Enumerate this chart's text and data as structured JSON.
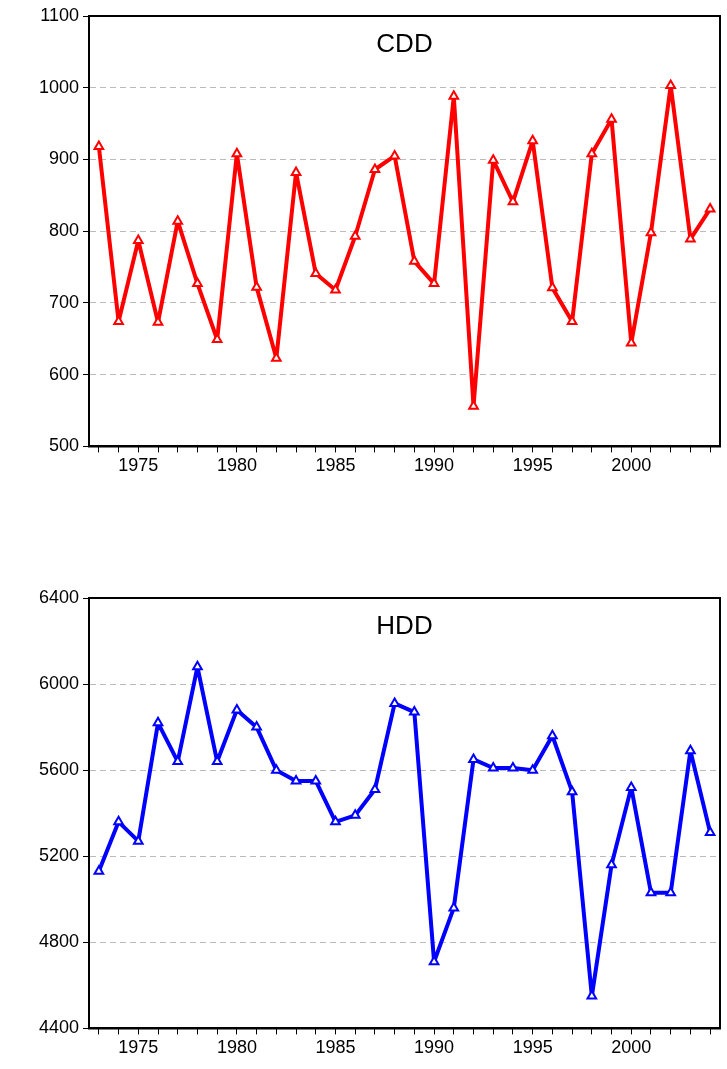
{
  "chart_data": [
    {
      "type": "line",
      "title": "CDD",
      "x": [
        1973,
        1974,
        1975,
        1976,
        1977,
        1978,
        1979,
        1980,
        1981,
        1982,
        1983,
        1984,
        1985,
        1986,
        1987,
        1988,
        1989,
        1990,
        1991,
        1992,
        1993,
        1994,
        1995,
        1996,
        1997,
        1998,
        1999,
        2000,
        2001,
        2002,
        2003,
        2004
      ],
      "series": [
        {
          "color": "#ff0000",
          "values": [
            918,
            674,
            787,
            673,
            814,
            727,
            649,
            908,
            722,
            623,
            882,
            741,
            718,
            793,
            886,
            905,
            758,
            727,
            988,
            556,
            899,
            841,
            926,
            721,
            674,
            908,
            956,
            644,
            798,
            1003,
            789,
            831
          ]
        }
      ],
      "xlim": [
        1972.5,
        2004.5
      ],
      "xticks": [
        {
          "value": 1973,
          "label": null
        },
        {
          "value": 1974,
          "label": null
        },
        1975,
        {
          "value": 1976,
          "label": null
        },
        {
          "value": 1977,
          "label": null
        },
        {
          "value": 1978,
          "label": null
        },
        {
          "value": 1979,
          "label": null
        },
        1980,
        {
          "value": 1981,
          "label": null
        },
        {
          "value": 1982,
          "label": null
        },
        {
          "value": 1983,
          "label": null
        },
        {
          "value": 1984,
          "label": null
        },
        1985,
        {
          "value": 1986,
          "label": null
        },
        {
          "value": 1987,
          "label": null
        },
        {
          "value": 1988,
          "label": null
        },
        {
          "value": 1989,
          "label": null
        },
        1990,
        {
          "value": 1991,
          "label": null
        },
        {
          "value": 1992,
          "label": null
        },
        {
          "value": 1993,
          "label": null
        },
        {
          "value": 1994,
          "label": null
        },
        1995,
        {
          "value": 1996,
          "label": null
        },
        {
          "value": 1997,
          "label": null
        },
        {
          "value": 1998,
          "label": null
        },
        {
          "value": 1999,
          "label": null
        },
        2000,
        {
          "value": 2001,
          "label": null
        },
        {
          "value": 2002,
          "label": null
        },
        {
          "value": 2003,
          "label": null
        },
        {
          "value": 2004,
          "label": null
        }
      ],
      "ylim": [
        500,
        1100
      ],
      "yticks": [
        500,
        600,
        700,
        800,
        900,
        1000,
        1100
      ],
      "grid": "y",
      "legend": false,
      "marker": "triangle",
      "line_style": "solid"
    },
    {
      "type": "line",
      "title": "HDD",
      "x": [
        1973,
        1974,
        1975,
        1976,
        1977,
        1978,
        1979,
        1980,
        1981,
        1982,
        1983,
        1984,
        1985,
        1986,
        1987,
        1988,
        1989,
        1990,
        1991,
        1992,
        1993,
        1994,
        1995,
        1996,
        1997,
        1998,
        1999,
        2000,
        2001,
        2002,
        2003,
        2004
      ],
      "series": [
        {
          "color": "#0000ff",
          "values": [
            5130,
            5360,
            5270,
            5820,
            5640,
            6080,
            5640,
            5880,
            5800,
            5600,
            5550,
            5550,
            5360,
            5390,
            5510,
            5910,
            5870,
            4710,
            4960,
            5650,
            5610,
            5610,
            5600,
            5760,
            5500,
            4550,
            5160,
            5520,
            5030,
            5030,
            5690,
            5310
          ]
        }
      ],
      "xlim": [
        1972.5,
        2004.5
      ],
      "xticks": [
        {
          "value": 1973,
          "label": null
        },
        {
          "value": 1974,
          "label": null
        },
        1975,
        {
          "value": 1976,
          "label": null
        },
        {
          "value": 1977,
          "label": null
        },
        {
          "value": 1978,
          "label": null
        },
        {
          "value": 1979,
          "label": null
        },
        1980,
        {
          "value": 1981,
          "label": null
        },
        {
          "value": 1982,
          "label": null
        },
        {
          "value": 1983,
          "label": null
        },
        {
          "value": 1984,
          "label": null
        },
        1985,
        {
          "value": 1986,
          "label": null
        },
        {
          "value": 1987,
          "label": null
        },
        {
          "value": 1988,
          "label": null
        },
        {
          "value": 1989,
          "label": null
        },
        1990,
        {
          "value": 1991,
          "label": null
        },
        {
          "value": 1992,
          "label": null
        },
        {
          "value": 1993,
          "label": null
        },
        {
          "value": 1994,
          "label": null
        },
        1995,
        {
          "value": 1996,
          "label": null
        },
        {
          "value": 1997,
          "label": null
        },
        {
          "value": 1998,
          "label": null
        },
        {
          "value": 1999,
          "label": null
        },
        2000,
        {
          "value": 2001,
          "label": null
        },
        {
          "value": 2002,
          "label": null
        },
        {
          "value": 2003,
          "label": null
        },
        {
          "value": 2004,
          "label": null
        }
      ],
      "ylim": [
        4400,
        6400
      ],
      "yticks": [
        4400,
        4800,
        5200,
        5600,
        6000,
        6400
      ],
      "grid": "y",
      "legend": false,
      "marker": "triangle",
      "line_style": "solid"
    }
  ]
}
